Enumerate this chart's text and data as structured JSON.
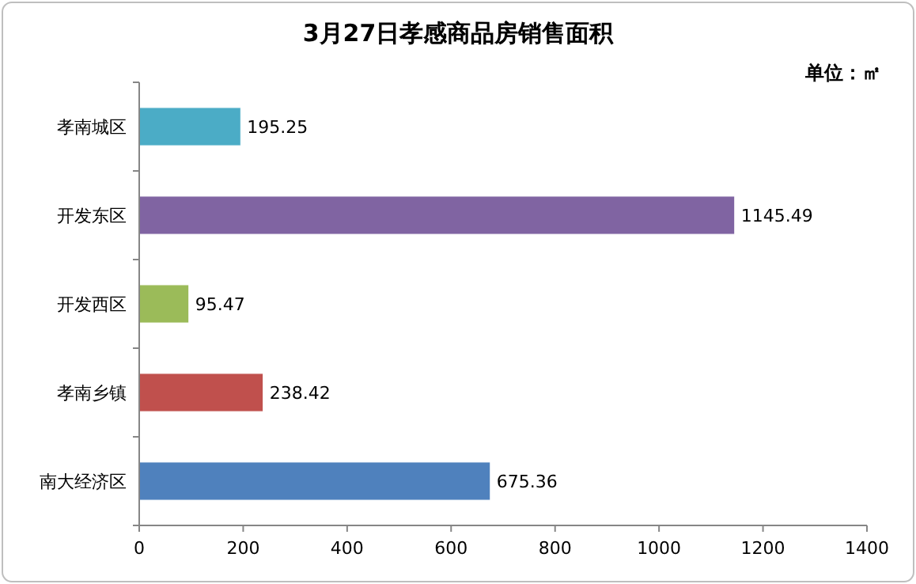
{
  "chart_data": {
    "type": "bar",
    "orientation": "horizontal",
    "title": "3月27日孝感商品房销售面积",
    "annotations": [
      "单位：㎡"
    ],
    "categories": [
      "孝南城区",
      "开发东区",
      "开发西区",
      "孝南乡镇",
      "南大经济区"
    ],
    "values": [
      195.25,
      1145.49,
      95.47,
      238.42,
      675.36
    ],
    "colors": [
      "#4bacc6",
      "#8064a2",
      "#9bbb59",
      "#c0504d",
      "#4f81bd"
    ],
    "xlim": [
      0,
      1400
    ],
    "xticks": [
      0,
      200,
      400,
      600,
      800,
      1000,
      1200,
      1400
    ],
    "data_labels": true,
    "grid": false
  }
}
